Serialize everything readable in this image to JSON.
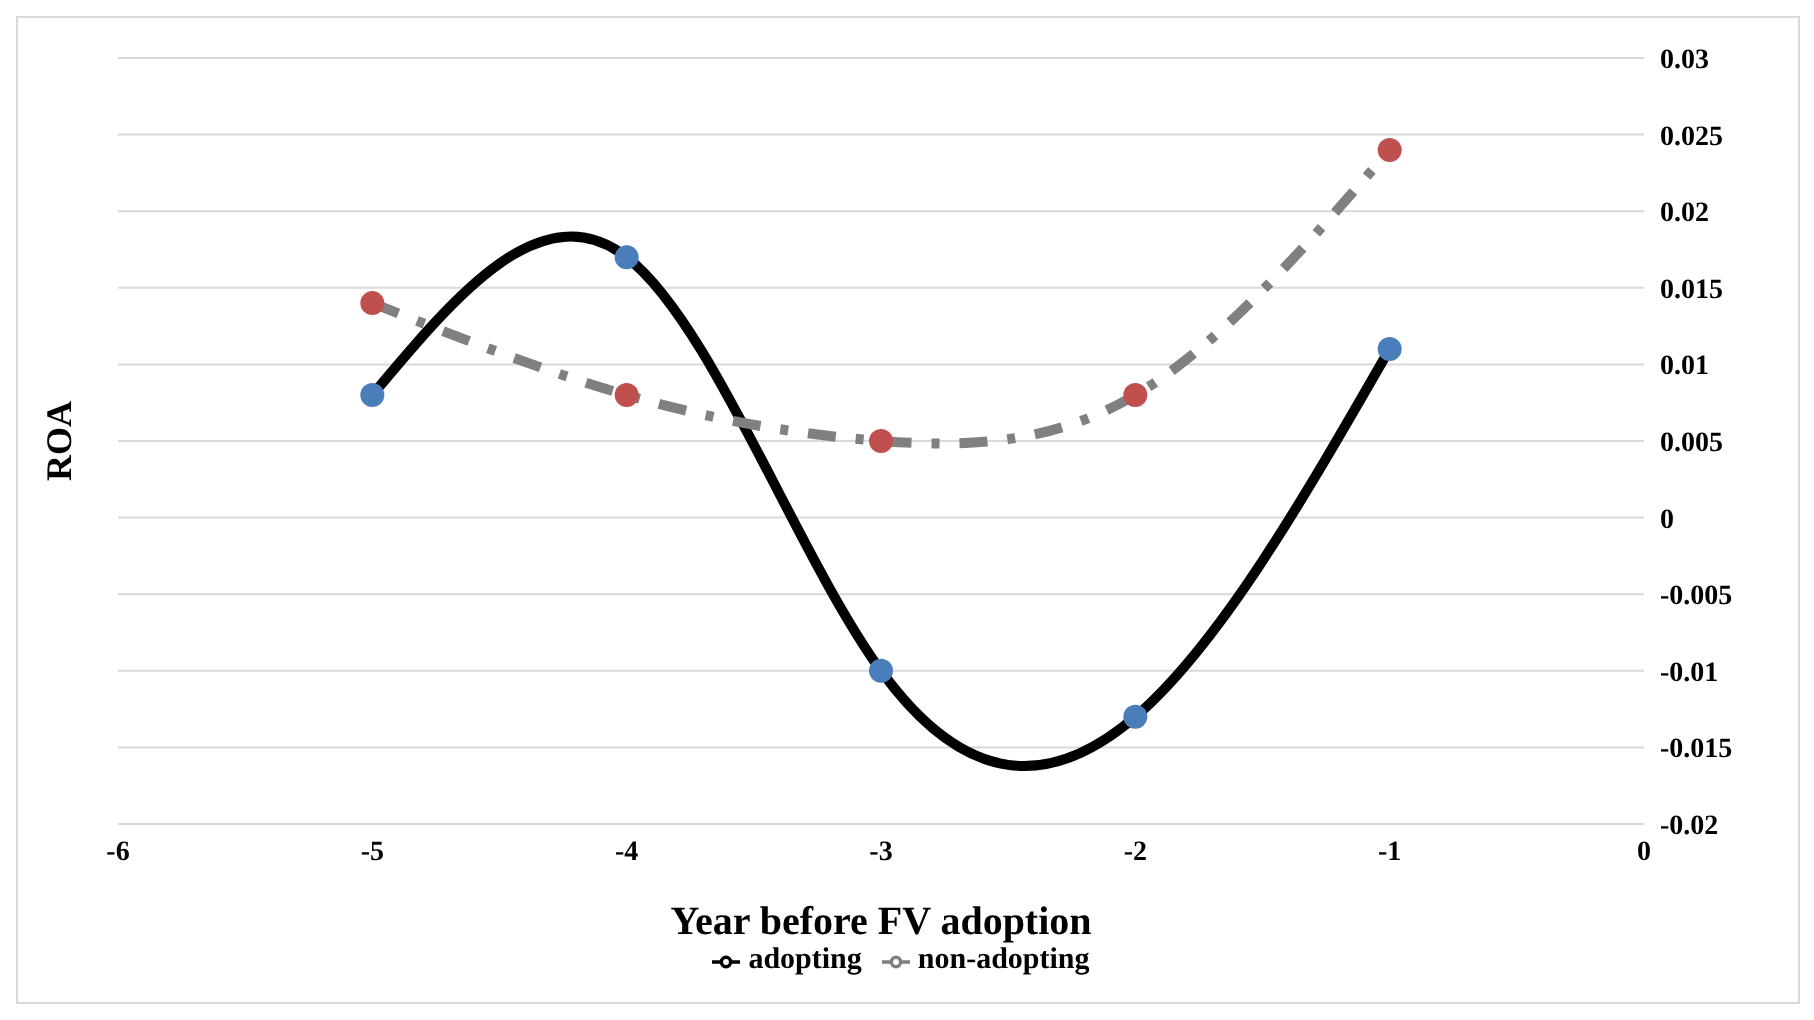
{
  "chart_data": {
    "type": "line",
    "xlabel": "Year before FV adoption",
    "ylabel": "ROA",
    "x": [
      -5,
      -4,
      -3,
      -2,
      -1
    ],
    "series": [
      {
        "name": "adopting",
        "color": "#000000",
        "colors": [
          "#4a7ebb",
          "#4a7ebb",
          "#4a7ebb",
          "#4a7ebb",
          "#4a7ebb"
        ],
        "line_style": "solid",
        "values": [
          0.008,
          0.017,
          -0.01,
          -0.013,
          0.011
        ]
      },
      {
        "name": "non-adopting",
        "color": "#808080",
        "colors": [
          "#c0504d",
          "#c0504d",
          "#c0504d",
          "#c0504d",
          "#c0504d"
        ],
        "line_style": "dashed",
        "values": [
          0.014,
          0.008,
          0.005,
          0.008,
          0.024
        ]
      }
    ],
    "xlim": [
      -6,
      0
    ],
    "xticks": [
      -6,
      -5,
      -4,
      -3,
      -2,
      -1,
      0
    ],
    "ylim": [
      -0.02,
      0.03
    ],
    "yticks": [
      -0.02,
      -0.015,
      -0.01,
      -0.005,
      0,
      0.005,
      0.01,
      0.015,
      0.02,
      0.025,
      0.03
    ],
    "grid": "y",
    "legend": "bottom",
    "marker": "circle"
  }
}
